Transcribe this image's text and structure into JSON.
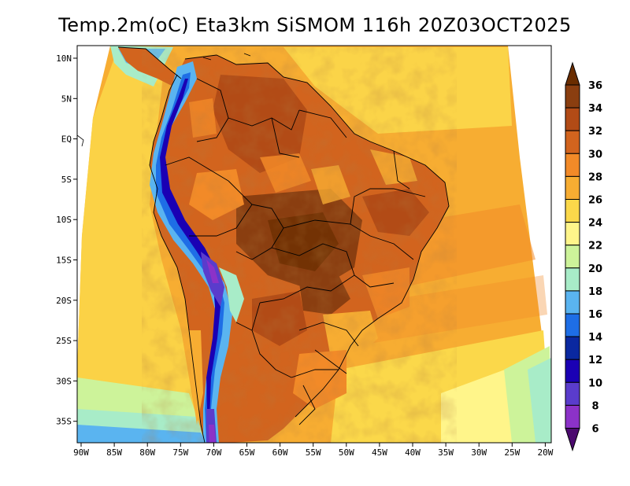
{
  "title": "Temp.2m(oC) Eta3km SiSMOM 116h 20Z03OCT2025",
  "axes": {
    "lon_labels": [
      "90W",
      "85W",
      "80W",
      "75W",
      "70W",
      "65W",
      "60W",
      "55W",
      "50W",
      "45W",
      "40W",
      "35W",
      "30W",
      "25W",
      "20W"
    ],
    "lat_labels": [
      "10N",
      "5N",
      "EQ",
      "5S",
      "10S",
      "15S",
      "20S",
      "25S",
      "30S",
      "35S"
    ]
  },
  "colorbar": {
    "labels": [
      "36",
      "34",
      "32",
      "30",
      "28",
      "26",
      "24",
      "22",
      "20",
      "18",
      "16",
      "14",
      "12",
      "10",
      "8",
      "6"
    ],
    "colors": [
      "#6a2d00",
      "#8a3e10",
      "#b24b16",
      "#d2641e",
      "#f28a28",
      "#f7ad32",
      "#fbd84a",
      "#fff58a",
      "#cdf39a",
      "#a8ecc8",
      "#5ab4f0",
      "#1e6ee6",
      "#0a28a0",
      "#1a00b4",
      "#5a3ccc",
      "#8c32c8",
      "#4b0a6e"
    ]
  }
}
